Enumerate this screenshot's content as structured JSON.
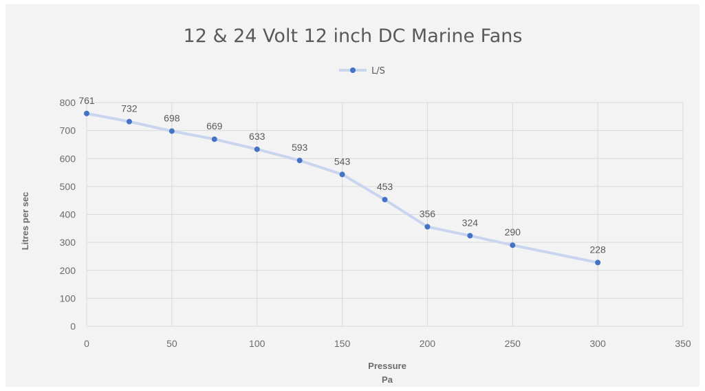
{
  "chart_data": {
    "type": "line",
    "title": "12 & 24 Volt 12 inch DC Marine Fans",
    "xlabel": [
      "Pressure",
      "Pa"
    ],
    "ylabel": "Litres per sec",
    "xlim": [
      0,
      350
    ],
    "ylim": [
      0,
      800
    ],
    "xticks": [
      0,
      50,
      100,
      150,
      200,
      250,
      300,
      350
    ],
    "yticks": [
      0,
      100,
      200,
      300,
      400,
      500,
      600,
      700,
      800
    ],
    "grid": true,
    "legend_position": "top",
    "series": [
      {
        "name": "L/S",
        "color": "#4472c4",
        "line_color": "#c9d5ee",
        "x": [
          0,
          25,
          50,
          75,
          100,
          125,
          150,
          175,
          200,
          225,
          250,
          300
        ],
        "y": [
          761,
          732,
          698,
          669,
          633,
          593,
          543,
          453,
          356,
          324,
          290,
          228
        ],
        "labels": [
          "761",
          "732",
          "698",
          "669",
          "633",
          "593",
          "543",
          "453",
          "356",
          "324",
          "290",
          "228"
        ]
      }
    ]
  }
}
